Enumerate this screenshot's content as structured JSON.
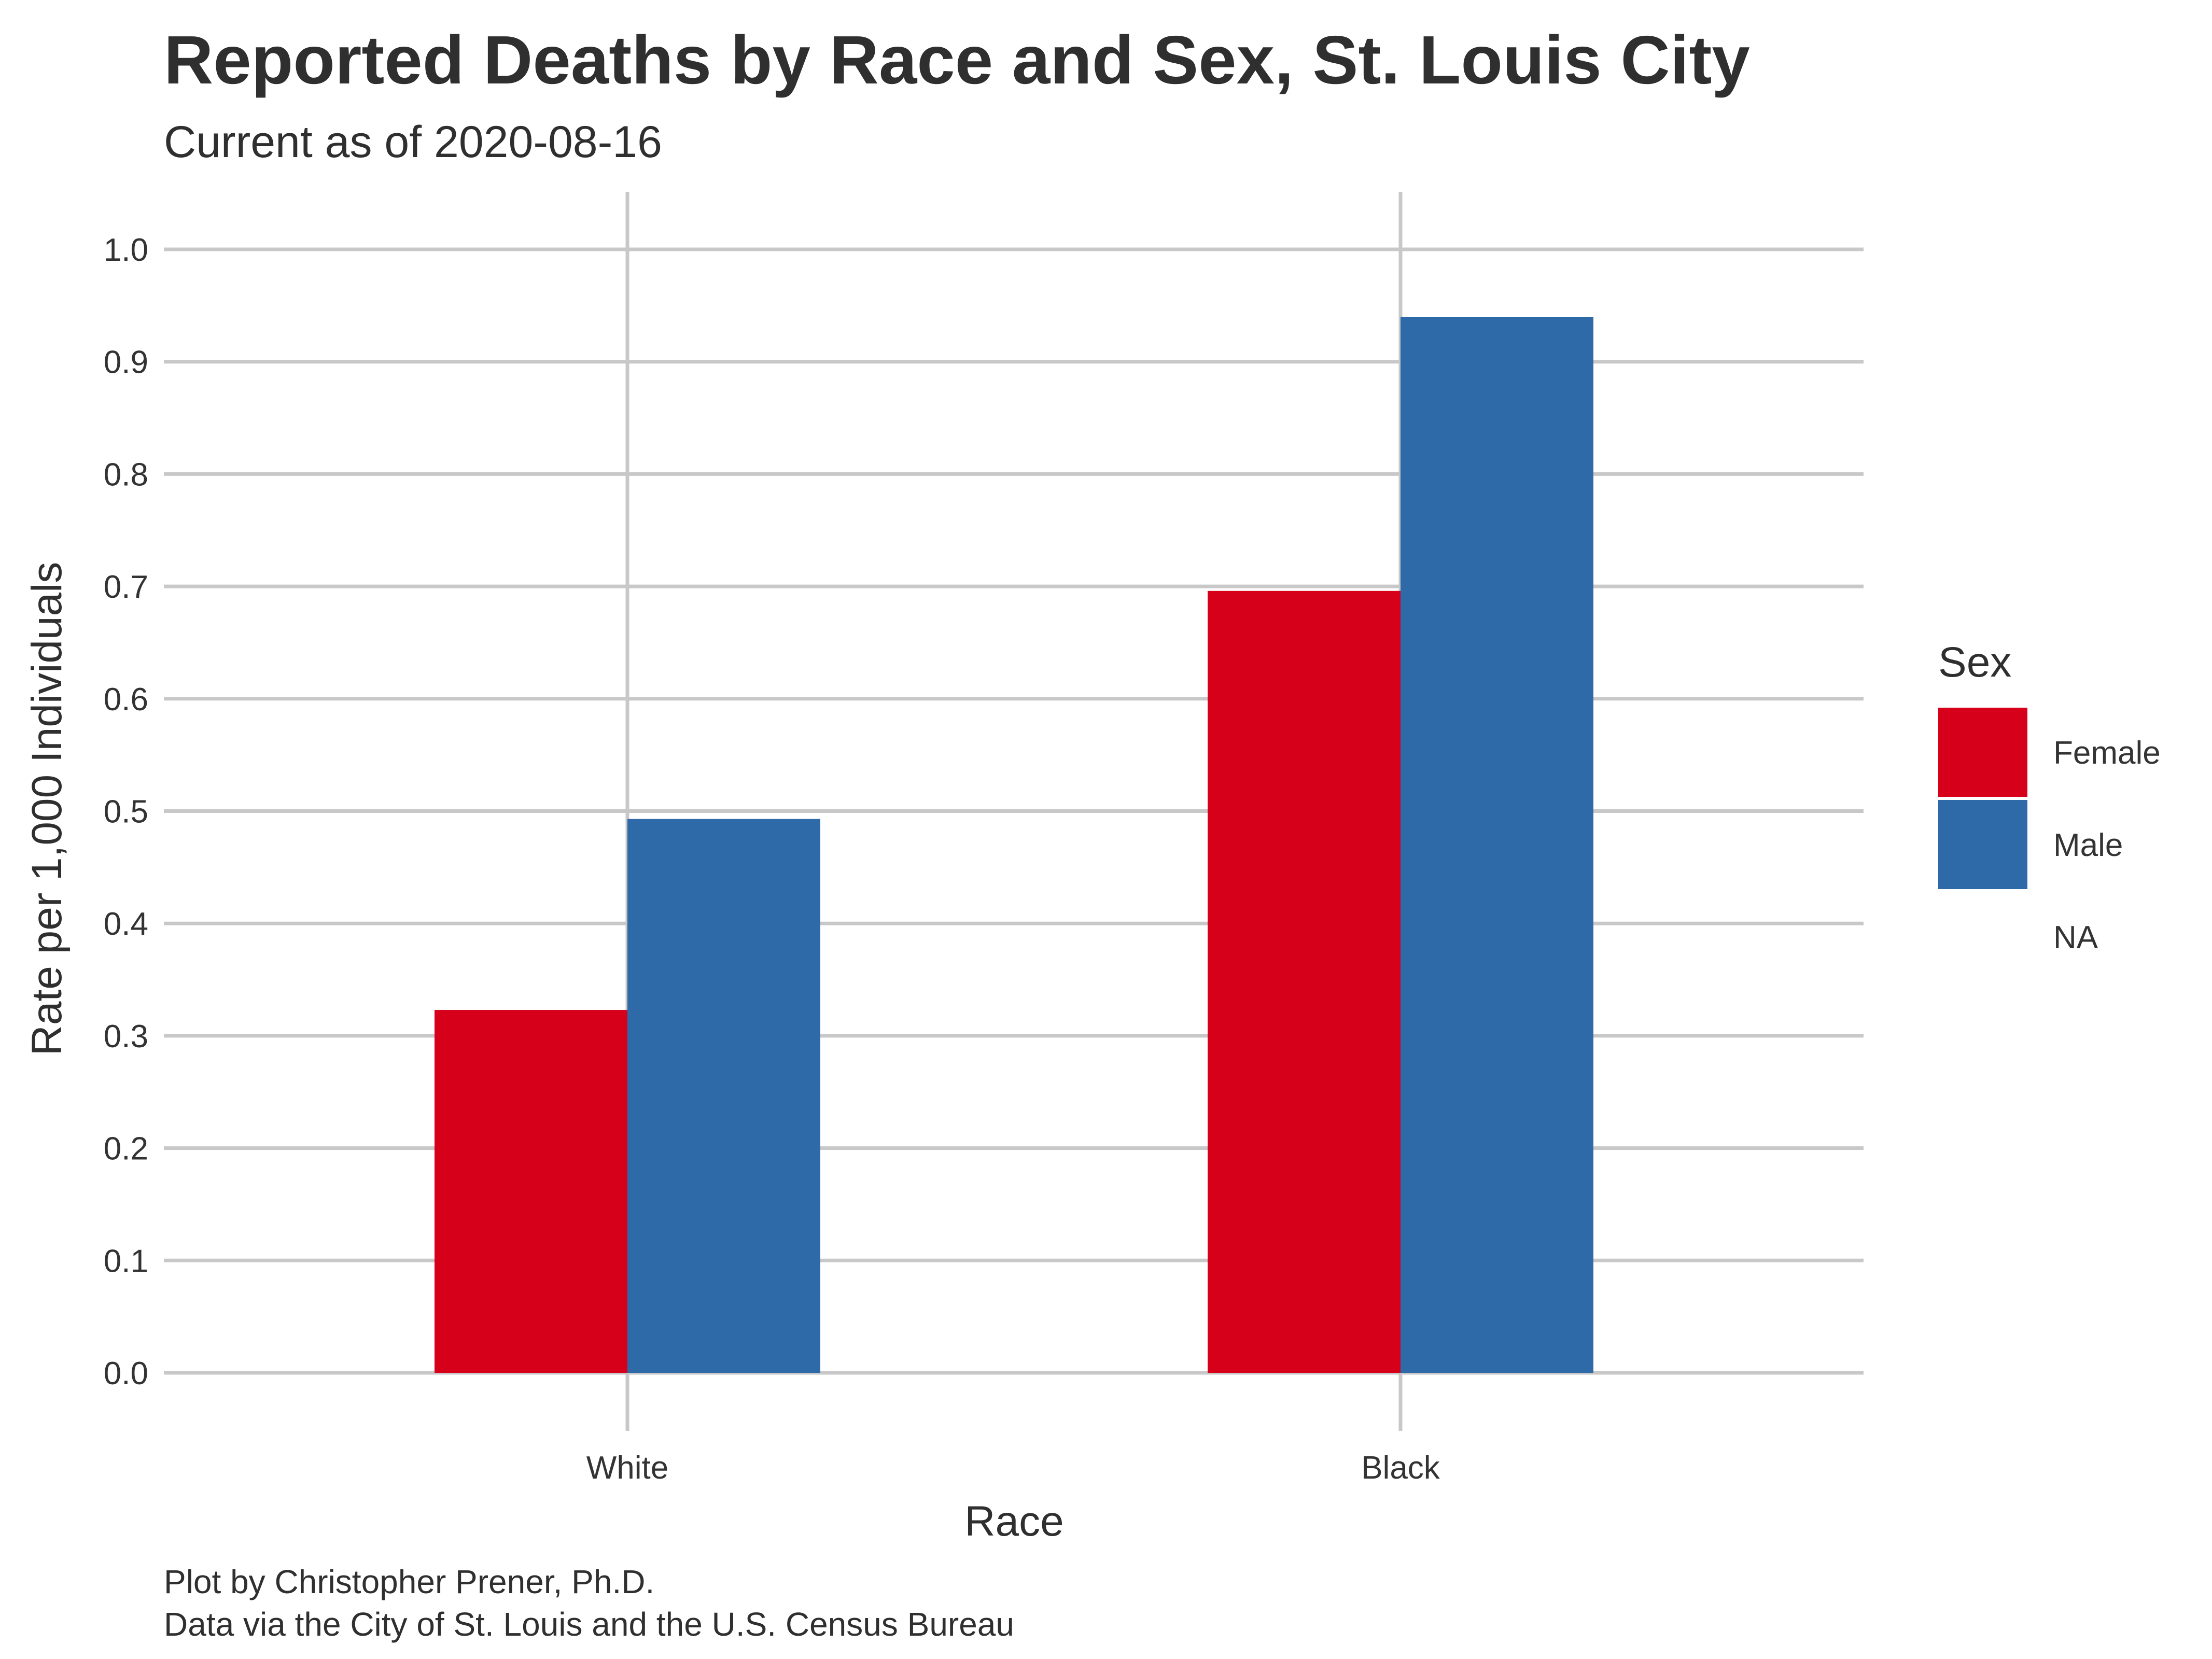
{
  "title": "Reported Deaths by Race and Sex, St. Louis City",
  "subtitle": "Current as of 2020-08-16",
  "caption_line1": "Plot by Christopher Prener, Ph.D.",
  "caption_line2": "Data via the City of St. Louis and the U.S. Census Bureau",
  "chart_data": {
    "type": "bar",
    "categories": [
      "White",
      "Black"
    ],
    "series": [
      {
        "name": "Female",
        "color": "#d7001b",
        "values": [
          0.323,
          0.696
        ]
      },
      {
        "name": "Male",
        "color": "#2e6aa8",
        "values": [
          0.493,
          0.94
        ]
      }
    ],
    "xlabel": "Race",
    "ylabel": "Rate per 1,000 Individuals",
    "ylim": [
      0,
      1.0
    ],
    "yticks": [
      "0.0",
      "0.1",
      "0.2",
      "0.3",
      "0.4",
      "0.5",
      "0.6",
      "0.7",
      "0.8",
      "0.9",
      "1.0"
    ],
    "grid": true,
    "legend": {
      "title": "Sex",
      "placement": "right",
      "entries": [
        {
          "label": "Female",
          "color": "#d7001b"
        },
        {
          "label": "Male",
          "color": "#2e6aa8"
        },
        {
          "label": "NA",
          "color": "#ffffff"
        }
      ]
    }
  }
}
